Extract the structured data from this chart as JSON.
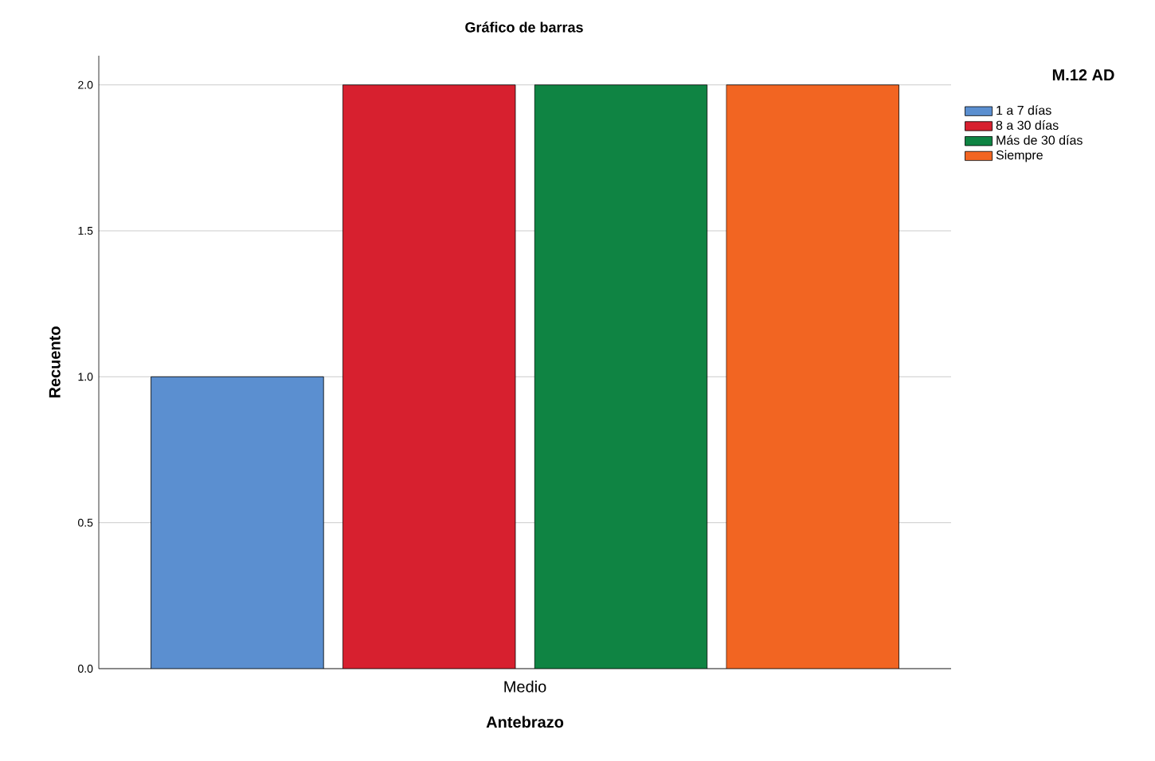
{
  "chart_data": {
    "type": "bar",
    "title": "Gráfico de barras",
    "xlabel": "Antebrazo",
    "ylabel": "Recuento",
    "legend_title": "M.12 AD",
    "categories": [
      "Medio"
    ],
    "series": [
      {
        "name": "1 a 7 días",
        "color": "#5b8fd0",
        "values": [
          1
        ]
      },
      {
        "name": "8 a 30 días",
        "color": "#d7202f",
        "values": [
          2
        ]
      },
      {
        "name": "Más de 30 días",
        "color": "#0f8443",
        "values": [
          2
        ]
      },
      {
        "name": "Siempre",
        "color": "#f26522",
        "values": [
          2
        ]
      }
    ],
    "ylim": [
      0,
      2.1
    ],
    "yticks": [
      {
        "value": 0,
        "label": "0.0"
      },
      {
        "value": 0.5,
        "label": "0.5"
      },
      {
        "value": 1,
        "label": "1.0"
      },
      {
        "value": 1.5,
        "label": "1.5"
      },
      {
        "value": 2,
        "label": "2.0"
      }
    ],
    "grid": "y",
    "legend": "right"
  }
}
